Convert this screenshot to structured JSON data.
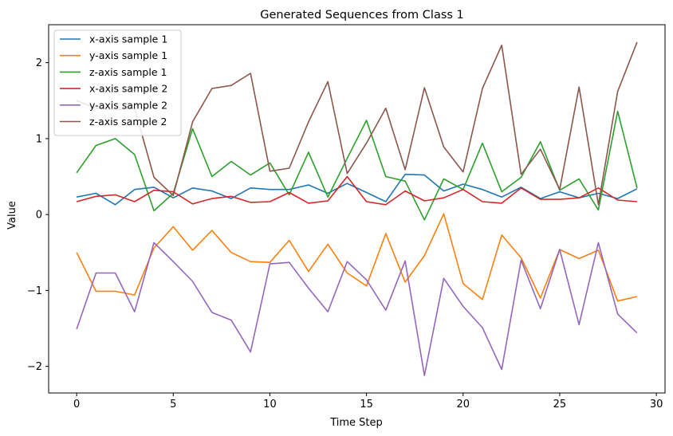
{
  "chart_data": {
    "type": "line",
    "title": "Generated Sequences from Class 1",
    "xlabel": "Time Step",
    "ylabel": "Value",
    "xlim": [
      -1.45,
      30.45
    ],
    "ylim": [
      -2.35,
      2.5
    ],
    "xticks": [
      0,
      5,
      10,
      15,
      20,
      25,
      30
    ],
    "yticks": [
      -2,
      -1,
      0,
      1,
      2
    ],
    "xtick_labels": [
      "0",
      "5",
      "10",
      "15",
      "20",
      "25",
      "30"
    ],
    "ytick_labels": [
      "−2",
      "−1",
      "0",
      "1",
      "2"
    ],
    "grid": false,
    "legend_position": "top-left",
    "x": [
      0,
      1,
      2,
      3,
      4,
      5,
      6,
      7,
      8,
      9,
      10,
      11,
      12,
      13,
      14,
      15,
      16,
      17,
      18,
      19,
      20,
      21,
      22,
      23,
      24,
      25,
      26,
      27,
      28,
      29
    ],
    "series": [
      {
        "name": "x-axis sample 1",
        "color": "#1f77b4",
        "values": [
          0.23,
          0.28,
          0.13,
          0.33,
          0.36,
          0.22,
          0.35,
          0.31,
          0.21,
          0.35,
          0.33,
          0.33,
          0.39,
          0.28,
          0.41,
          0.29,
          0.17,
          0.53,
          0.52,
          0.31,
          0.4,
          0.33,
          0.23,
          0.36,
          0.21,
          0.3,
          0.22,
          0.28,
          0.21,
          0.34
        ]
      },
      {
        "name": "y-axis sample 1",
        "color": "#ff7f0e",
        "values": [
          -0.5,
          -1.01,
          -1.01,
          -1.06,
          -0.44,
          -0.16,
          -0.47,
          -0.21,
          -0.5,
          -0.62,
          -0.63,
          -0.34,
          -0.75,
          -0.39,
          -0.77,
          -0.94,
          -0.25,
          -0.89,
          -0.54,
          0.01,
          -0.91,
          -1.12,
          -0.27,
          -0.57,
          -1.1,
          -0.46,
          -0.58,
          -0.47,
          -1.14,
          -1.08
        ]
      },
      {
        "name": "z-axis sample 1",
        "color": "#2ca02c",
        "values": [
          0.55,
          0.91,
          1.0,
          0.79,
          0.05,
          0.28,
          1.13,
          0.5,
          0.7,
          0.52,
          0.68,
          0.26,
          0.82,
          0.23,
          0.74,
          1.24,
          0.5,
          0.44,
          -0.07,
          0.47,
          0.33,
          0.94,
          0.3,
          0.49,
          0.96,
          0.32,
          0.47,
          0.06,
          1.36,
          0.35
        ]
      },
      {
        "name": "x-axis sample 2",
        "color": "#d62728",
        "values": [
          0.17,
          0.24,
          0.26,
          0.17,
          0.32,
          0.3,
          0.14,
          0.21,
          0.24,
          0.16,
          0.17,
          0.29,
          0.15,
          0.18,
          0.5,
          0.17,
          0.13,
          0.31,
          0.18,
          0.22,
          0.33,
          0.17,
          0.15,
          0.35,
          0.2,
          0.2,
          0.22,
          0.35,
          0.19,
          0.17
        ]
      },
      {
        "name": "y-axis sample 2",
        "color": "#9467bd",
        "values": [
          -1.51,
          -0.77,
          -0.77,
          -1.28,
          -0.37,
          -0.62,
          -0.88,
          -1.29,
          -1.39,
          -1.81,
          -0.65,
          -0.63,
          -0.97,
          -1.28,
          -0.62,
          -0.86,
          -1.26,
          -0.61,
          -2.12,
          -0.84,
          -1.21,
          -1.49,
          -2.04,
          -0.6,
          -1.24,
          -0.46,
          -1.45,
          -0.37,
          -1.31,
          -1.56
        ]
      },
      {
        "name": "z-axis sample 2",
        "color": "#8c564b",
        "values": [
          1.5,
          1.4,
          1.38,
          1.4,
          0.49,
          0.25,
          1.22,
          1.66,
          1.7,
          1.86,
          0.57,
          0.61,
          1.22,
          1.75,
          0.54,
          0.94,
          1.4,
          0.59,
          1.67,
          0.89,
          0.56,
          1.66,
          2.23,
          0.53,
          0.86,
          0.33,
          1.68,
          0.13,
          1.62,
          2.27
        ]
      }
    ]
  }
}
